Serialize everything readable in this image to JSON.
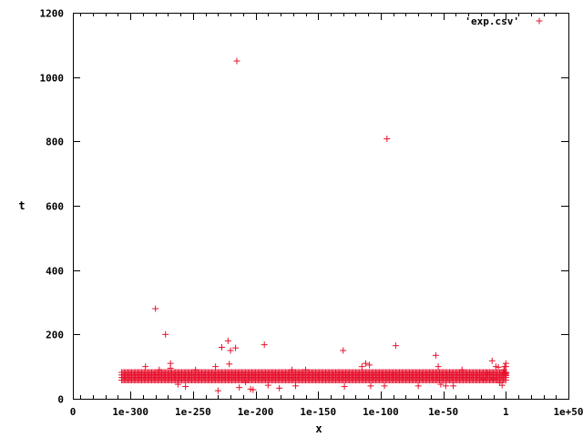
{
  "chart_data": {
    "type": "scatter",
    "xlabel": "x",
    "ylabel": "t",
    "xscale": "log10",
    "xlim_log10": [
      -346,
      50
    ],
    "ylim": [
      0,
      1200
    ],
    "grid": false,
    "legend_placement": "top-right",
    "x_tick_labels": [
      "0",
      "1e-300",
      "1e-250",
      "1e-200",
      "1e-150",
      "1e-100",
      "1e-50",
      "1",
      "1e+50"
    ],
    "x_tick_log10": [
      null,
      -300,
      -250,
      -200,
      -150,
      -100,
      -50,
      0,
      50
    ],
    "y_ticks": [
      0,
      200,
      400,
      600,
      800,
      1000,
      1200
    ],
    "series": [
      {
        "name": "'exp.csv'",
        "color": "#e8112d",
        "marker": "plus",
        "band": {
          "x_log10_range": [
            -307,
            0
          ],
          "t_values": [
            58,
            66,
            74,
            82
          ],
          "step_log10": 1
        },
        "points": [
          {
            "x": "1e-288",
            "t": 100
          },
          {
            "x": "1e-280",
            "t": 280
          },
          {
            "x": "1e-277",
            "t": 90
          },
          {
            "x": "1e-272",
            "t": 200
          },
          {
            "x": "1e-268",
            "t": 110
          },
          {
            "x": "1e-268",
            "t": 95
          },
          {
            "x": "1e-262",
            "t": 45
          },
          {
            "x": "1e-256",
            "t": 38
          },
          {
            "x": "1e-248",
            "t": 90
          },
          {
            "x": "1e-232",
            "t": 100
          },
          {
            "x": "1e-230",
            "t": 25
          },
          {
            "x": "1e-227",
            "t": 160
          },
          {
            "x": "1e-222",
            "t": 180
          },
          {
            "x": "1e-220",
            "t": 150
          },
          {
            "x": "1e-221",
            "t": 108
          },
          {
            "x": "1e-216",
            "t": 158
          },
          {
            "x": "1e-215",
            "t": 1050
          },
          {
            "x": "1e-213",
            "t": 35
          },
          {
            "x": "1e-208",
            "t": 52
          },
          {
            "x": "1e-204",
            "t": 30
          },
          {
            "x": "1e-202",
            "t": 28
          },
          {
            "x": "1e-193",
            "t": 168
          },
          {
            "x": "1e-190",
            "t": 42
          },
          {
            "x": "1e-181",
            "t": 33
          },
          {
            "x": "1e-171",
            "t": 90
          },
          {
            "x": "1e-168",
            "t": 40
          },
          {
            "x": "1e-160",
            "t": 90
          },
          {
            "x": "1e-130",
            "t": 150
          },
          {
            "x": "1e-129",
            "t": 38
          },
          {
            "x": "1e-115",
            "t": 100
          },
          {
            "x": "1e-112",
            "t": 110
          },
          {
            "x": "1e-109",
            "t": 105
          },
          {
            "x": "1e-108",
            "t": 40
          },
          {
            "x": "1e-97",
            "t": 40
          },
          {
            "x": "1e-95",
            "t": 808
          },
          {
            "x": "1e-90",
            "t": 75
          },
          {
            "x": "1e-88",
            "t": 165
          },
          {
            "x": "1e-70",
            "t": 40
          },
          {
            "x": "1e-56",
            "t": 135
          },
          {
            "x": "1e-54",
            "t": 100
          },
          {
            "x": "1e-52",
            "t": 45
          },
          {
            "x": "1e-48",
            "t": 40
          },
          {
            "x": "1e-42",
            "t": 40
          },
          {
            "x": "1e-35",
            "t": 90
          },
          {
            "x": "1e-18",
            "t": 60
          },
          {
            "x": "1e-15",
            "t": 80
          },
          {
            "x": "1e-11",
            "t": 118
          },
          {
            "x": "1e-10",
            "t": 60
          },
          {
            "x": "1e-8",
            "t": 100
          },
          {
            "x": "1e-6",
            "t": 98
          },
          {
            "x": "1e-5",
            "t": 50
          },
          {
            "x": "1e-3",
            "t": 42
          },
          {
            "x": "1e-2",
            "t": 80
          },
          {
            "x": "0.03",
            "t": 90
          },
          {
            "x": "0.1",
            "t": 100
          },
          {
            "x": "0.3",
            "t": 78
          },
          {
            "x": "1",
            "t": 110
          },
          {
            "x": "1",
            "t": 72
          },
          {
            "x": "1",
            "t": 100
          },
          {
            "x": "2",
            "t": 80
          }
        ]
      }
    ]
  }
}
